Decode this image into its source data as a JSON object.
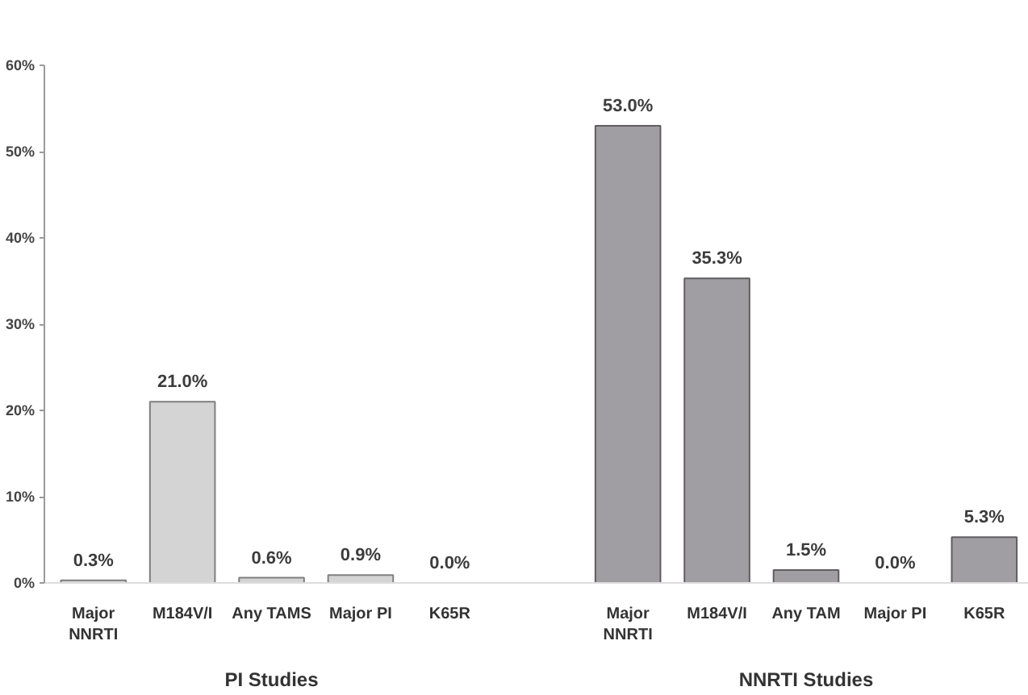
{
  "chart_data": {
    "type": "bar",
    "categories": [
      "Major NNRTI",
      "M184V/I",
      "Any TAMS",
      "Major PI",
      "K65R",
      null,
      "Major NNRTI",
      "M184V/I",
      "Any TAM",
      "Major PI",
      "K65R"
    ],
    "values": [
      0.3,
      21.0,
      0.6,
      0.9,
      0.0,
      null,
      53.0,
      35.3,
      1.5,
      0.0,
      5.3
    ],
    "colors": [
      "#d4d4d4",
      "#d4d4d4",
      "#d4d4d4",
      "#d4d4d4",
      "#d4d4d4",
      "#d4d4d4",
      "#a09ea2",
      "#a09ea2",
      "#a09ea2",
      "#a09ea2",
      "#a09ea2"
    ],
    "value_labels": [
      "0.3%",
      "21.0%",
      "0.6%",
      "0.9%",
      "0.0%",
      null,
      "53.0%",
      "35.3%",
      "1.5%",
      "0.0%",
      "5.3%"
    ],
    "ylim": [
      0,
      60
    ],
    "yticks": [
      {
        "value": 0,
        "label": "0%"
      },
      {
        "value": 10,
        "label": "10%"
      },
      {
        "value": 20,
        "label": "20%"
      },
      {
        "value": 30,
        "label": "30%"
      },
      {
        "value": 40,
        "label": "40%"
      },
      {
        "value": 50,
        "label": "50%"
      },
      {
        "value": 60,
        "label": "60%"
      }
    ],
    "annotations": [
      "PI Studies",
      "NNRTI Studies"
    ]
  }
}
